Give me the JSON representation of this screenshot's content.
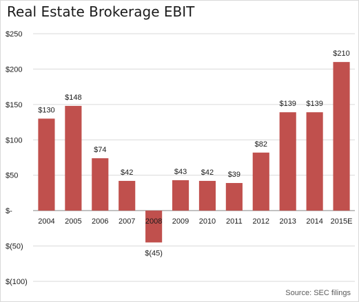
{
  "chart_data": {
    "type": "bar",
    "title": "Real Estate Brokerage EBIT",
    "source": "Source: SEC filings",
    "xlabel": "",
    "ylabel": "",
    "categories": [
      "2004",
      "2005",
      "2006",
      "2007",
      "2008",
      "2009",
      "2010",
      "2011",
      "2012",
      "2013",
      "2014",
      "2015E"
    ],
    "values": [
      130,
      148,
      74,
      42,
      -45,
      43,
      42,
      39,
      82,
      139,
      139,
      210
    ],
    "data_labels": [
      "$130",
      "$148",
      "$74",
      "$42",
      "$(45)",
      "$43",
      "$42",
      "$39",
      "$82",
      "$139",
      "$139",
      "$210"
    ],
    "y_ticks": [
      250,
      200,
      150,
      100,
      50,
      0,
      -50,
      -100
    ],
    "y_tick_labels": [
      "$250",
      "$200",
      "$150",
      "$100",
      "$50",
      "$-",
      "$(50)",
      "$(100)"
    ],
    "ylim": [
      -100,
      250
    ],
    "grid": true,
    "legend": "none",
    "bar_color": "#c0504d",
    "grid_color": "#d9d9d9"
  }
}
